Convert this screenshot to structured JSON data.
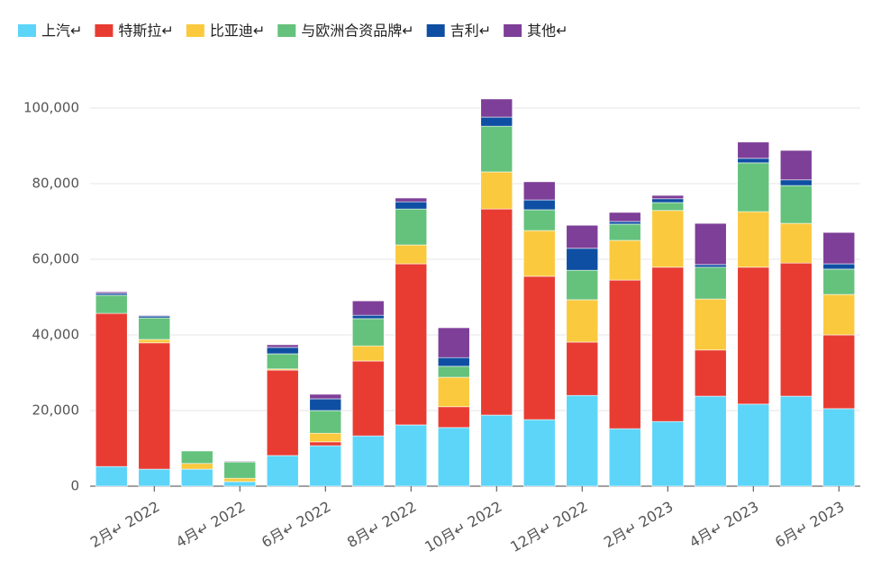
{
  "chart_data": {
    "type": "stacked_bar",
    "categories": [
      null,
      "2月↵ 2022",
      null,
      "4月↵ 2022",
      null,
      "6月↵ 2022",
      null,
      "8月↵ 2022",
      null,
      "10月↵ 2022",
      null,
      "12月↵ 2022",
      null,
      "2月↵ 2023",
      null,
      "4月↵ 2023",
      null,
      "6月↵ 2023"
    ],
    "series": [
      {
        "name": "上汽↵",
        "color": "#5dd5f9",
        "values": [
          5200,
          4500,
          4500,
          1200,
          8100,
          10700,
          13300,
          16200,
          15500,
          18800,
          17600,
          24000,
          15200,
          17100,
          23800,
          21700,
          23800,
          20500
        ]
      },
      {
        "name": "特斯拉↵",
        "color": "#e83c33",
        "values": [
          40500,
          33400,
          0,
          0,
          22600,
          1000,
          19800,
          42600,
          5500,
          54500,
          37900,
          14100,
          39300,
          40800,
          12200,
          36200,
          35200,
          19500
        ]
      },
      {
        "name": "比亚迪↵",
        "color": "#fbc93d",
        "values": [
          0,
          900,
          1500,
          900,
          300,
          2300,
          4000,
          5000,
          7800,
          9800,
          12100,
          11200,
          10500,
          15000,
          13500,
          14700,
          10500,
          10700
        ]
      },
      {
        "name": "与欧洲合资品牌↵",
        "color": "#64c27c",
        "values": [
          4800,
          5700,
          3300,
          4300,
          4000,
          6000,
          7200,
          9500,
          2900,
          12100,
          5500,
          7800,
          4300,
          2100,
          8400,
          12900,
          10000,
          6700
        ]
      },
      {
        "name": "吉利↵",
        "color": "#0f4fa3",
        "values": [
          500,
          500,
          0,
          0,
          1700,
          3100,
          900,
          1900,
          2300,
          2400,
          2600,
          5800,
          700,
          1000,
          700,
          1200,
          1500,
          1400
        ]
      },
      {
        "name": "其他↵",
        "color": "#7e3f98",
        "values": [
          400,
          200,
          0,
          200,
          700,
          1200,
          3800,
          1000,
          7900,
          4800,
          4800,
          6100,
          2400,
          900,
          10900,
          4300,
          7800,
          8300
        ]
      }
    ],
    "ylim": [
      0,
      105000
    ],
    "yticks": [
      0,
      {
        "value": 20000,
        "label": "20,000"
      },
      {
        "value": 40000,
        "label": "40,000"
      },
      {
        "value": 60000,
        "label": "60,000"
      },
      {
        "value": 80000,
        "label": "80,000"
      },
      {
        "value": 100000,
        "label": "100,000"
      }
    ],
    "grid": true,
    "legend": "top-left"
  }
}
